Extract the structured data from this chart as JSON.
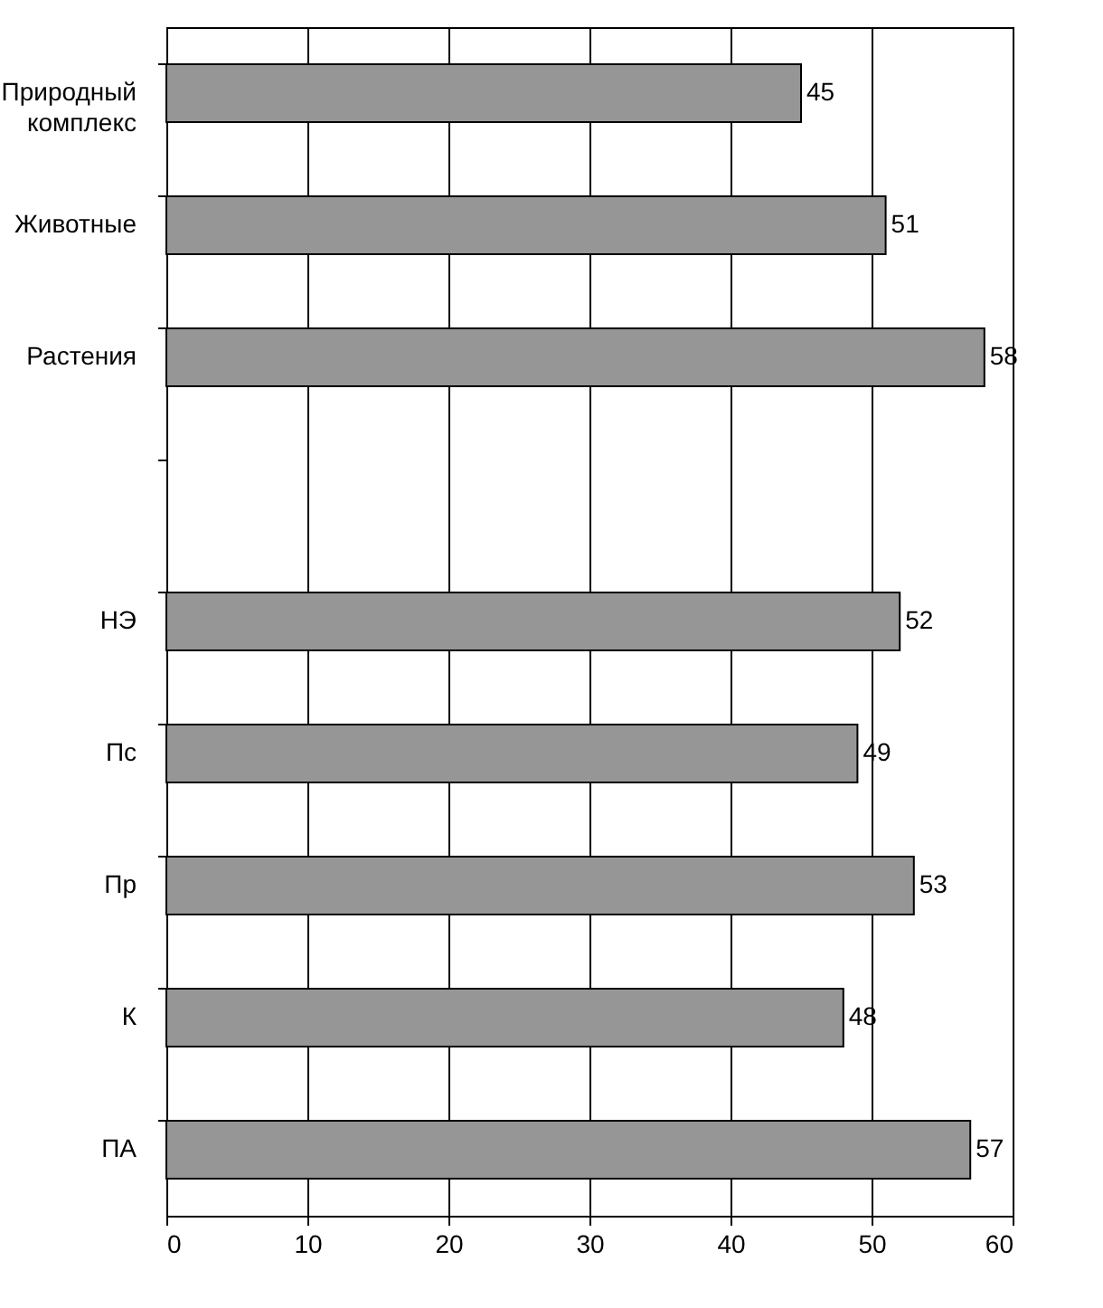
{
  "chart_data": {
    "type": "bar",
    "orientation": "horizontal",
    "categories": [
      "Природный комплекс",
      "Животные",
      "Растения",
      null,
      "НЭ",
      "Пс",
      "Пр",
      "К",
      "ПА"
    ],
    "values": [
      45,
      51,
      58,
      null,
      52,
      49,
      53,
      48,
      57
    ],
    "color": "#969696",
    "xlim": [
      0,
      60
    ],
    "xticks": [
      0,
      10,
      20,
      30,
      40,
      50,
      60
    ],
    "grid": "x",
    "data_labels": true
  }
}
